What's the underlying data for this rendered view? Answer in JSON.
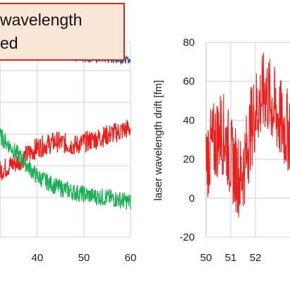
{
  "title_box": {
    "lines": [
      "wavelength",
      "ed"
    ]
  },
  "colors": {
    "blue": "#3a5f8f",
    "red": "#e8211f",
    "green": "#1eae57",
    "grid": "#d0d0d0",
    "title_border": "#d52b1e",
    "title_fill": "#fbe5d6"
  },
  "chart_data": [
    {
      "type": "line",
      "xlabel": "",
      "ylabel": "",
      "xlim": [
        32,
        60
      ],
      "ylim": [
        0,
        10
      ],
      "x_ticks": [
        40,
        50,
        60
      ],
      "grid": true,
      "series": [
        {
          "color": "blue",
          "x": [
            32,
            36,
            40,
            44,
            48,
            52,
            56,
            60
          ],
          "values": [
            9.3,
            9.3,
            9.3,
            9.25,
            9.2,
            9.15,
            9.1,
            9.1
          ]
        },
        {
          "color": "red",
          "x": [
            32,
            36,
            40,
            44,
            48,
            52,
            56,
            60
          ],
          "values": [
            3.4,
            3.9,
            4.6,
            4.9,
            4.7,
            5.0,
            5.3,
            5.6
          ]
        },
        {
          "color": "green",
          "x": [
            32,
            36,
            40,
            44,
            48,
            52,
            56,
            60
          ],
          "values": [
            5.2,
            4.2,
            3.1,
            2.6,
            2.3,
            2.1,
            2.0,
            1.8
          ]
        }
      ]
    },
    {
      "type": "line",
      "xlabel": "",
      "ylabel": "laser wavelength drift [fm]",
      "xlim": [
        50,
        53.4
      ],
      "ylim": [
        -20,
        80
      ],
      "x_ticks": [
        50,
        51,
        52
      ],
      "y_ticks": [
        -20,
        0,
        20,
        40,
        60,
        80
      ],
      "grid": true,
      "series": [
        {
          "color": "red",
          "x": [
            50.0,
            50.2,
            50.4,
            50.6,
            50.8,
            51.0,
            51.2,
            51.4,
            51.6,
            51.8,
            52.0,
            52.2,
            52.4,
            52.6,
            52.8,
            53.0,
            53.2
          ],
          "values": [
            20,
            25,
            30,
            35,
            30,
            20,
            15,
            10,
            20,
            35,
            45,
            50,
            55,
            50,
            45,
            40,
            35
          ]
        }
      ]
    }
  ]
}
